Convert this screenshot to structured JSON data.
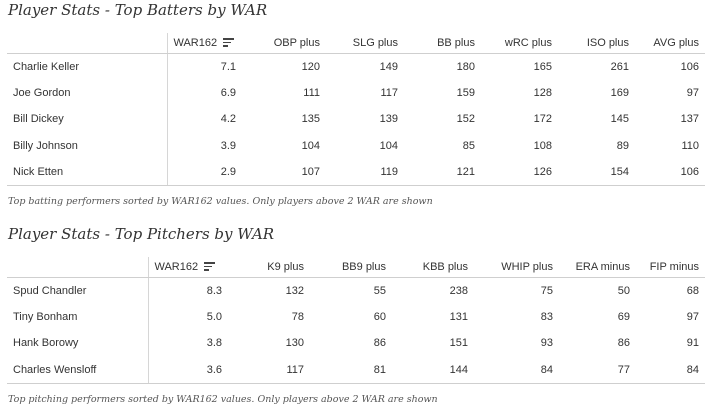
{
  "batters": {
    "title": "Player Stats - Top Batters by WAR",
    "columns": [
      "WAR162",
      "OBP plus",
      "SLG plus",
      "BB plus",
      "wRC plus",
      "ISO plus",
      "AVG plus"
    ],
    "rows": [
      {
        "name": "Charlie Keller",
        "values": [
          "7.1",
          "120",
          "149",
          "180",
          "165",
          "261",
          "106"
        ]
      },
      {
        "name": "Joe Gordon",
        "values": [
          "6.9",
          "111",
          "117",
          "159",
          "128",
          "169",
          "97"
        ]
      },
      {
        "name": "Bill Dickey",
        "values": [
          "4.2",
          "135",
          "139",
          "152",
          "172",
          "145",
          "137"
        ]
      },
      {
        "name": "Billy Johnson",
        "values": [
          "3.9",
          "104",
          "104",
          "85",
          "108",
          "89",
          "110"
        ]
      },
      {
        "name": "Nick Etten",
        "values": [
          "2.9",
          "107",
          "119",
          "121",
          "126",
          "154",
          "106"
        ]
      }
    ],
    "caption": "Top batting performers sorted by WAR162 values. Only players above 2 WAR are shown"
  },
  "pitchers": {
    "title": "Player Stats - Top Pitchers by WAR",
    "columns": [
      "WAR162",
      "K9 plus",
      "BB9 plus",
      "KBB plus",
      "WHIP plus",
      "ERA minus",
      "FIP minus"
    ],
    "rows": [
      {
        "name": "Spud Chandler",
        "values": [
          "8.3",
          "132",
          "55",
          "238",
          "75",
          "50",
          "68"
        ]
      },
      {
        "name": "Tiny Bonham",
        "values": [
          "5.0",
          "78",
          "60",
          "131",
          "83",
          "69",
          "97"
        ]
      },
      {
        "name": "Hank Borowy",
        "values": [
          "3.8",
          "130",
          "86",
          "151",
          "93",
          "86",
          "91"
        ]
      },
      {
        "name": "Charles Wensloff",
        "values": [
          "3.6",
          "117",
          "81",
          "144",
          "84",
          "77",
          "84"
        ]
      }
    ],
    "caption": "Top pitching performers sorted by WAR162 values. Only players above 2 WAR are shown"
  },
  "icons": {
    "sort": "sort-descending-icon"
  }
}
